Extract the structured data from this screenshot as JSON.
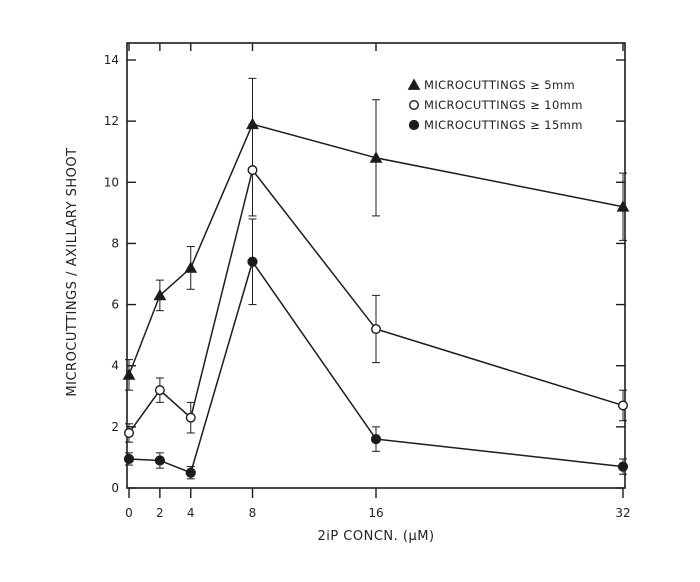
{
  "chart_data": {
    "type": "line",
    "title": "",
    "xlabel": "2iP CONCN. (μM)",
    "ylabel": "MICROCUTTINGS / AXILLARY SHOOT",
    "x": [
      0,
      2,
      4,
      8,
      16,
      32
    ],
    "xticks": [
      "0",
      "2",
      "4",
      "8",
      "16",
      "32"
    ],
    "xlim": [
      0,
      32
    ],
    "ylim": [
      0,
      14
    ],
    "yticks": [
      "0",
      "2",
      "4",
      "6",
      "8",
      "10",
      "12",
      "14"
    ],
    "grid": false,
    "legend_position": "top-right",
    "series": [
      {
        "name": "MICROCUTTINGS ≥ 5mm",
        "marker": "filled-triangle",
        "values": [
          3.7,
          6.3,
          7.2,
          11.9,
          10.8,
          9.2
        ],
        "error": [
          0.5,
          0.5,
          0.7,
          1.5,
          1.9,
          1.1
        ]
      },
      {
        "name": "MICROCUTTINGS ≥ 10mm",
        "marker": "open-circle",
        "values": [
          1.8,
          3.2,
          2.3,
          10.4,
          5.2,
          2.7
        ],
        "error": [
          0.3,
          0.4,
          0.5,
          1.5,
          1.1,
          0.5
        ]
      },
      {
        "name": "MICROCUTTINGS ≥ 15mm",
        "marker": "filled-circle",
        "values": [
          0.95,
          0.9,
          0.5,
          7.4,
          1.6,
          0.7
        ],
        "error": [
          0.2,
          0.25,
          0.2,
          1.4,
          0.4,
          0.25
        ]
      }
    ]
  }
}
